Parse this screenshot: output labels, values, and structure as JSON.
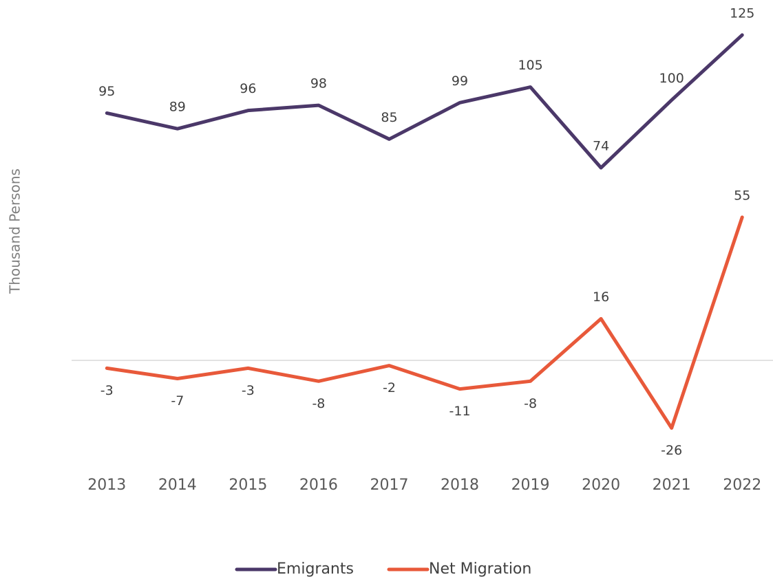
{
  "chart_data": {
    "type": "line",
    "y_label": "Thousand Persons",
    "categories": [
      "2013",
      "2014",
      "2015",
      "2016",
      "2017",
      "2018",
      "2019",
      "2020",
      "2021",
      "2022"
    ],
    "series": [
      {
        "name": "Emigrants",
        "color": "#4b3869",
        "values": [
          95,
          89,
          96,
          98,
          85,
          99,
          105,
          74,
          100,
          125
        ]
      },
      {
        "name": "Net Migration",
        "color": "#e8593a",
        "values": [
          -3,
          -7,
          -3,
          -8,
          -2,
          -11,
          -8,
          16,
          -26,
          55
        ]
      }
    ],
    "ylim": [
      -40,
      130
    ],
    "grid": false,
    "legend": "bottom"
  }
}
